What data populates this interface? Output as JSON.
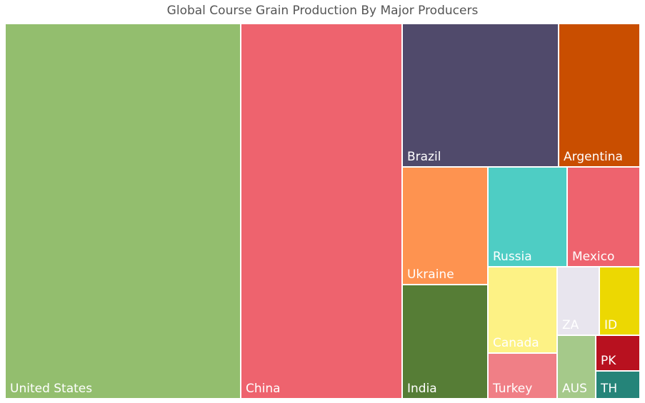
{
  "chart_data": {
    "type": "treemap",
    "title": "Global Course Grain Production By Major Producers",
    "items": [
      {
        "label": "United States",
        "value": 100,
        "color": "#93BE6E"
      },
      {
        "label": "China",
        "value": 69,
        "color": "#EE636E"
      },
      {
        "label": "Brazil",
        "value": 30.2,
        "color": "#504A6B"
      },
      {
        "label": "Argentina",
        "value": 15.5,
        "color": "#C94E00"
      },
      {
        "label": "Ukraine",
        "value": 11.9,
        "color": "#FE9350"
      },
      {
        "label": "Russia",
        "value": 8.9,
        "color": "#4ECDC4"
      },
      {
        "label": "Mexico",
        "value": 8.1,
        "color": "#EE636E"
      },
      {
        "label": "India",
        "value": 9.6,
        "color": "#567D36"
      },
      {
        "label": "Canada",
        "value": 6.0,
        "color": "#FDF285"
      },
      {
        "label": "Turkey",
        "value": 3.9,
        "color": "#F07F86"
      },
      {
        "label": "ZA",
        "value": 3.3,
        "color": "#E8E5EE"
      },
      {
        "label": "ID",
        "value": 3.3,
        "color": "#ECD802"
      },
      {
        "label": "PK",
        "value": 1.7,
        "color": "#B8111F"
      },
      {
        "label": "AUS",
        "value": 2.4,
        "color": "#A5C98A"
      },
      {
        "label": "TH",
        "value": 1.3,
        "color": "#258479"
      }
    ]
  }
}
